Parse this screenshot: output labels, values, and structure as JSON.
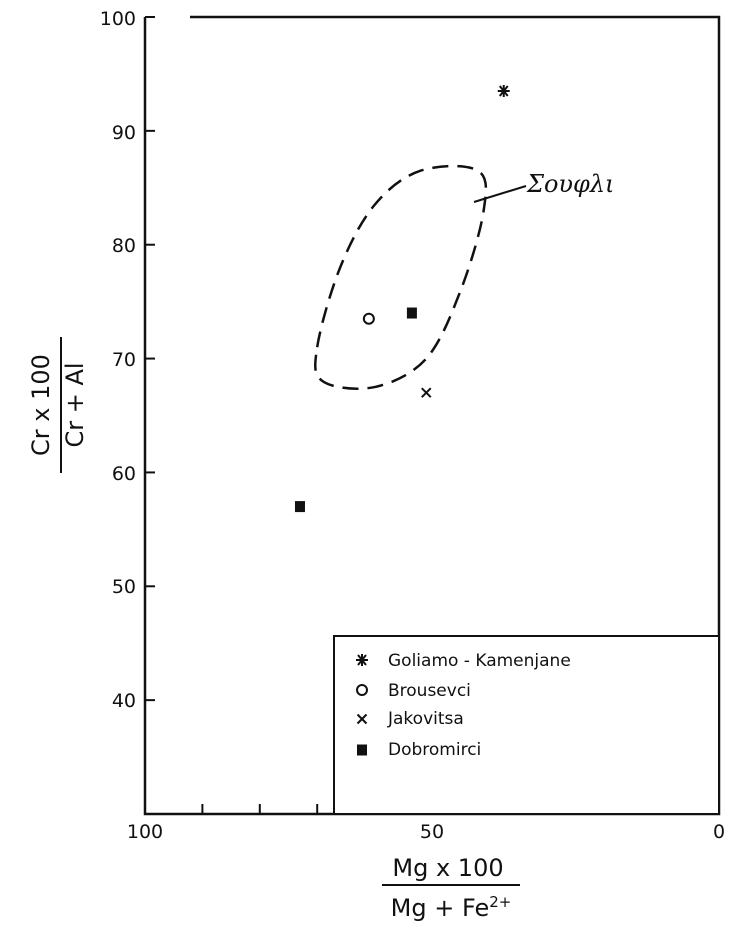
{
  "chart_data": {
    "type": "scatter",
    "x_axis": {
      "range": [
        100,
        0
      ],
      "ticks": [
        100,
        50,
        0
      ],
      "minor_ticks": [
        90,
        80,
        70,
        60,
        40,
        30,
        20,
        10
      ],
      "label_numerator": "Mg x 100",
      "label_denominator": "Mg + Fe2+"
    },
    "y_axis": {
      "range": [
        30,
        100
      ],
      "ticks": [
        40,
        50,
        60,
        70,
        80,
        90,
        100
      ],
      "label_numerator": "Cr x 100",
      "label_denominator": "Cr + Al"
    },
    "series": [
      {
        "name": "Goliamo - Kamenjane",
        "marker": "asterisk",
        "points": [
          [
            37.5,
            93.5
          ]
        ]
      },
      {
        "name": "Brousevci",
        "marker": "circle",
        "points": [
          [
            61,
            73.5
          ]
        ]
      },
      {
        "name": "Jakovitsa",
        "marker": "x",
        "points": [
          [
            51,
            67
          ]
        ]
      },
      {
        "name": "Dobromirci",
        "marker": "square",
        "points": [
          [
            53.5,
            74
          ],
          [
            73,
            57
          ]
        ]
      }
    ],
    "field_outline": {
      "label": "Σουφλι",
      "style": "dashed",
      "points": [
        [
          70,
          71
        ],
        [
          66,
          78
        ],
        [
          60,
          83.5
        ],
        [
          52,
          86.5
        ],
        [
          42,
          86.5
        ],
        [
          41,
          83
        ],
        [
          45,
          76
        ],
        [
          51,
          70
        ],
        [
          60,
          67.5
        ],
        [
          69,
          68
        ]
      ]
    },
    "legend": {
      "position": "bottom-right"
    },
    "grid": false
  }
}
